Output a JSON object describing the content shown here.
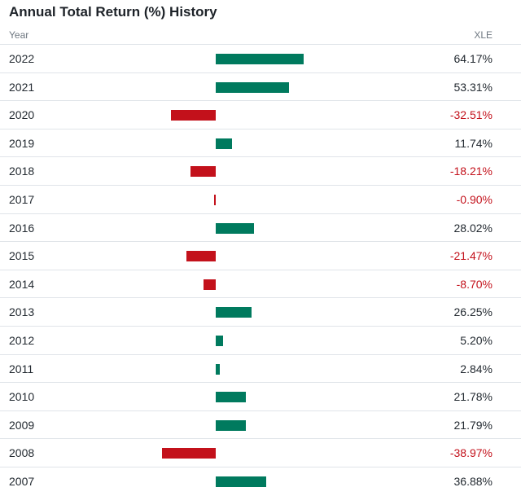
{
  "page": {
    "title": "Annual Total Return (%) History",
    "year_header": "Year",
    "ticker_header": "XLE"
  },
  "colors": {
    "positive_bar": "#007a5e",
    "negative_bar": "#c3111b",
    "positive_text": "#232a31",
    "negative_text": "#c3111b"
  },
  "chart_data": {
    "type": "bar",
    "orientation": "horizontal",
    "title": "Annual Total Return (%) History",
    "categories": [
      "2022",
      "2021",
      "2020",
      "2019",
      "2018",
      "2017",
      "2016",
      "2015",
      "2014",
      "2013",
      "2012",
      "2011",
      "2010",
      "2009",
      "2008",
      "2007"
    ],
    "series": [
      {
        "name": "XLE",
        "values": [
          64.17,
          53.31,
          -32.51,
          11.74,
          -18.21,
          -0.9,
          28.02,
          -21.47,
          -8.7,
          26.25,
          5.2,
          2.84,
          21.78,
          21.79,
          -38.97,
          36.88
        ]
      }
    ],
    "labels": [
      "64.17%",
      "53.31%",
      "-32.51%",
      "11.74%",
      "-18.21%",
      "-0.90%",
      "28.02%",
      "-21.47%",
      "-8.70%",
      "26.25%",
      "5.20%",
      "2.84%",
      "21.78%",
      "21.79%",
      "-38.97%",
      "36.88%"
    ],
    "xlabel": "",
    "ylabel": "",
    "grid": false
  }
}
